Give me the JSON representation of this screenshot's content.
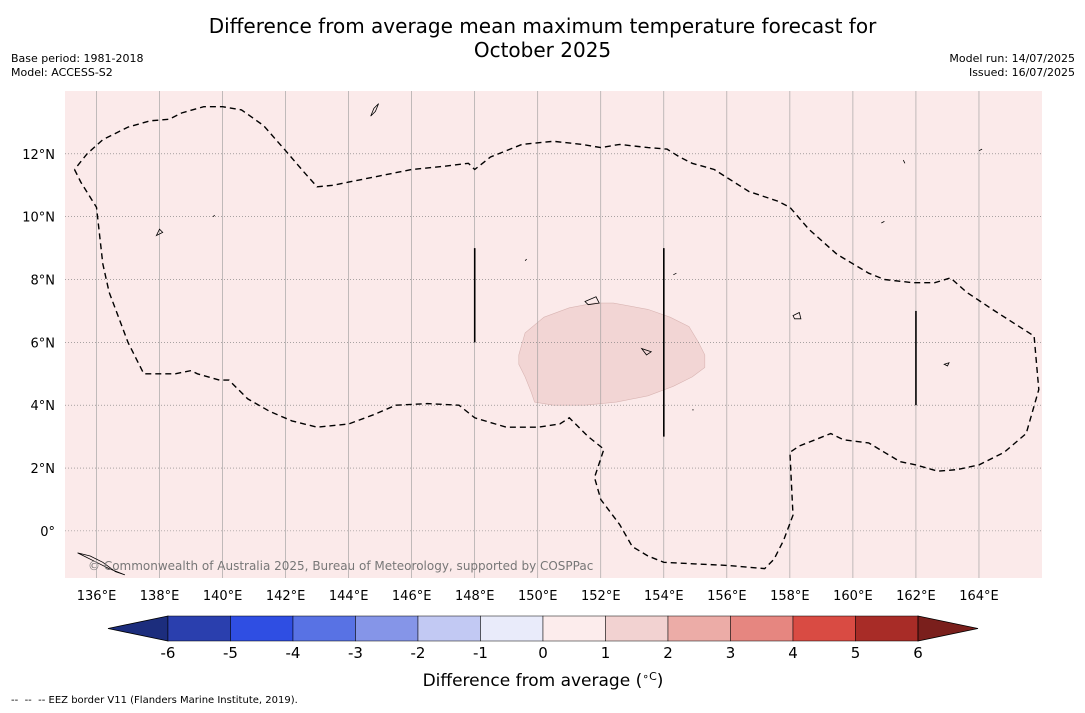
{
  "title_line1": "Difference from average mean maximum temperature forecast for",
  "title_line2": "October 2025",
  "base_period_label": "Base period:",
  "base_period": "1981-2018",
  "model_label": "Model:",
  "model": "ACCESS-S2",
  "model_run_label": "Model run:",
  "model_run": "14/07/2025",
  "issued_label": "Issued:",
  "issued": "16/07/2025",
  "copyright": "© Commonwealth of Australia 2025, Bureau of Meteorology, supported by COSPPac",
  "footnote": "--  --  -- EEZ border V11 (Flanders Marine Institute, 2019).",
  "colors": {
    "background_anomaly": "#fbeaea",
    "warm_patch": "#f2d5d4",
    "gridline": "#999999"
  },
  "map": {
    "lon_range": [
      135,
      166
    ],
    "lat_range": [
      -1.5,
      14
    ],
    "lon_ticks": [
      136,
      138,
      140,
      142,
      144,
      146,
      148,
      150,
      152,
      154,
      156,
      158,
      160,
      162,
      164
    ],
    "lon_tick_labels": [
      "136°E",
      "138°E",
      "140°E",
      "142°E",
      "144°E",
      "146°E",
      "148°E",
      "150°E",
      "152°E",
      "154°E",
      "156°E",
      "158°E",
      "160°E",
      "162°E",
      "164°E"
    ],
    "lat_ticks": [
      0,
      2,
      4,
      6,
      8,
      10,
      12
    ],
    "lat_tick_labels": [
      "0°",
      "2°N",
      "4°N",
      "6°N",
      "8°N",
      "10°N",
      "12°N"
    ],
    "eez_border": [
      [
        135.3,
        11.5
      ],
      [
        135.5,
        11.1
      ],
      [
        136,
        10.3
      ],
      [
        136.2,
        8.5
      ],
      [
        136.4,
        7.6
      ],
      [
        137,
        6
      ],
      [
        137.5,
        5
      ],
      [
        138.5,
        5
      ],
      [
        139,
        5.1
      ],
      [
        139.2,
        5
      ],
      [
        139.9,
        4.8
      ],
      [
        140.2,
        4.8
      ],
      [
        140.8,
        4.2
      ],
      [
        141.5,
        3.8
      ],
      [
        142.2,
        3.5
      ],
      [
        143,
        3.3
      ],
      [
        144,
        3.4
      ],
      [
        144.8,
        3.7
      ],
      [
        145.5,
        4
      ],
      [
        146.5,
        4.05
      ],
      [
        147.5,
        4
      ],
      [
        148,
        3.6
      ],
      [
        149,
        3.3
      ],
      [
        150,
        3.3
      ],
      [
        150.7,
        3.4
      ],
      [
        151,
        3.6
      ],
      [
        151.6,
        3
      ],
      [
        152.1,
        2.6
      ],
      [
        151.8,
        1.7
      ],
      [
        152,
        1
      ],
      [
        152.6,
        0.2
      ],
      [
        153,
        -0.5
      ],
      [
        153.5,
        -0.8
      ],
      [
        154,
        -1
      ],
      [
        155,
        -1.05
      ],
      [
        156,
        -1.1
      ],
      [
        157.2,
        -1.2
      ],
      [
        157.5,
        -0.9
      ],
      [
        157.8,
        -0.3
      ],
      [
        158.1,
        0.5
      ],
      [
        158,
        2.5
      ],
      [
        158.3,
        2.7
      ],
      [
        158.8,
        2.9
      ],
      [
        159.3,
        3.1
      ],
      [
        159.7,
        2.9
      ],
      [
        160.5,
        2.8
      ],
      [
        161,
        2.5
      ],
      [
        161.5,
        2.2
      ],
      [
        162,
        2.1
      ],
      [
        162.7,
        1.9
      ],
      [
        163.3,
        1.95
      ],
      [
        164,
        2.1
      ],
      [
        164.8,
        2.5
      ],
      [
        165.5,
        3.1
      ],
      [
        165.9,
        4.5
      ],
      [
        165.75,
        6.2
      ],
      [
        164.5,
        7
      ],
      [
        163.6,
        7.6
      ],
      [
        163.1,
        8.05
      ],
      [
        162.6,
        7.9
      ],
      [
        161.9,
        7.9
      ],
      [
        161,
        8
      ],
      [
        160.5,
        8.2
      ],
      [
        160,
        8.5
      ],
      [
        159.5,
        8.8
      ],
      [
        158.6,
        9.6
      ],
      [
        158,
        10.3
      ],
      [
        157.6,
        10.5
      ],
      [
        156.7,
        10.8
      ],
      [
        155.6,
        11.5
      ],
      [
        154.9,
        11.7
      ],
      [
        154.5,
        11.9
      ],
      [
        154.1,
        12.15
      ],
      [
        153.5,
        12.2
      ],
      [
        152.6,
        12.3
      ],
      [
        152,
        12.2
      ],
      [
        151.4,
        12.3
      ],
      [
        150.5,
        12.4
      ],
      [
        149.5,
        12.3
      ],
      [
        148.5,
        11.9
      ],
      [
        148,
        11.5
      ],
      [
        147.8,
        11.7
      ],
      [
        147,
        11.6
      ],
      [
        146,
        11.5
      ],
      [
        145,
        11.3
      ],
      [
        144,
        11.1
      ],
      [
        143.5,
        11
      ],
      [
        143,
        10.95
      ],
      [
        142.6,
        11.4
      ],
      [
        142,
        12.1
      ],
      [
        141.3,
        12.9
      ],
      [
        140.6,
        13.4
      ],
      [
        140,
        13.5
      ],
      [
        139.4,
        13.5
      ],
      [
        138.7,
        13.3
      ],
      [
        138.3,
        13.1
      ],
      [
        137.7,
        13.05
      ],
      [
        137,
        12.85
      ],
      [
        136.2,
        12.45
      ],
      [
        135.7,
        12
      ],
      [
        135.3,
        11.5
      ]
    ],
    "warm_region": [
      [
        149.4,
        5.6
      ],
      [
        149.6,
        6.3
      ],
      [
        150.2,
        6.8
      ],
      [
        151,
        7.1
      ],
      [
        151.8,
        7.25
      ],
      [
        152.4,
        7.25
      ],
      [
        153.5,
        7.05
      ],
      [
        154.2,
        6.8
      ],
      [
        154.8,
        6.5
      ],
      [
        155.1,
        6
      ],
      [
        155.3,
        5.6
      ],
      [
        155.3,
        5.2
      ],
      [
        154.9,
        4.9
      ],
      [
        154.3,
        4.6
      ],
      [
        153.5,
        4.3
      ],
      [
        152.5,
        4.1
      ],
      [
        151.5,
        4.0
      ],
      [
        150.5,
        4.0
      ],
      [
        149.9,
        4.1
      ],
      [
        149.8,
        4.4
      ],
      [
        149.6,
        4.9
      ],
      [
        149.4,
        5.3
      ],
      [
        149.4,
        5.6
      ]
    ],
    "boundary_lines": [
      {
        "lon": 148,
        "lat_from": 6.0,
        "lat_to": 9.0
      },
      {
        "lon": 154,
        "lat_from": 3.0,
        "lat_to": 9.0
      },
      {
        "lon": 162,
        "lat_from": 4.0,
        "lat_to": 7.0
      }
    ],
    "islands": [
      {
        "name": "guam",
        "points": [
          [
            144.7,
            13.2
          ],
          [
            144.8,
            13.45
          ],
          [
            144.95,
            13.6
          ],
          [
            144.85,
            13.35
          ],
          [
            144.7,
            13.2
          ]
        ]
      },
      {
        "name": "palau-islet",
        "points": [
          [
            137.9,
            9.4
          ],
          [
            138.0,
            9.6
          ],
          [
            138.1,
            9.5
          ],
          [
            137.9,
            9.4
          ]
        ]
      },
      {
        "name": "chuuk",
        "points": [
          [
            151.5,
            7.3
          ],
          [
            151.85,
            7.45
          ],
          [
            151.95,
            7.25
          ],
          [
            151.6,
            7.2
          ],
          [
            151.5,
            7.3
          ]
        ]
      },
      {
        "name": "pohnpei",
        "points": [
          [
            158.1,
            6.85
          ],
          [
            158.3,
            6.95
          ],
          [
            158.35,
            6.75
          ],
          [
            158.15,
            6.75
          ],
          [
            158.1,
            6.85
          ]
        ]
      },
      {
        "name": "kosrae",
        "points": [
          [
            162.9,
            5.3
          ],
          [
            163.05,
            5.35
          ],
          [
            163.0,
            5.25
          ],
          [
            162.9,
            5.3
          ]
        ]
      },
      {
        "name": "ulithi",
        "points": [
          [
            139.7,
            10.0
          ],
          [
            139.75,
            10.05
          ],
          [
            139.7,
            10.0
          ]
        ]
      },
      {
        "name": "nukuoro",
        "points": [
          [
            154.9,
            3.85
          ],
          [
            154.95,
            3.85
          ],
          [
            154.9,
            3.85
          ]
        ]
      },
      {
        "name": "kapinga",
        "points": [
          [
            153.3,
            5.8
          ],
          [
            153.45,
            5.6
          ],
          [
            153.6,
            5.7
          ],
          [
            153.3,
            5.8
          ]
        ]
      },
      {
        "name": "islet-a",
        "points": [
          [
            154.3,
            8.15
          ],
          [
            154.4,
            8.2
          ],
          [
            154.3,
            8.15
          ]
        ]
      },
      {
        "name": "islet-b",
        "points": [
          [
            164.0,
            12.1
          ],
          [
            164.1,
            12.15
          ],
          [
            164.0,
            12.1
          ]
        ]
      },
      {
        "name": "islet-c",
        "points": [
          [
            160.9,
            9.8
          ],
          [
            161.0,
            9.85
          ],
          [
            160.9,
            9.8
          ]
        ]
      },
      {
        "name": "islet-d",
        "points": [
          [
            161.6,
            11.8
          ],
          [
            161.65,
            11.7
          ],
          [
            161.6,
            11.8
          ]
        ]
      },
      {
        "name": "islet-e",
        "points": [
          [
            149.6,
            8.6
          ],
          [
            149.65,
            8.65
          ],
          [
            149.6,
            8.6
          ]
        ]
      },
      {
        "name": "new-guinea-coast",
        "points": [
          [
            135.4,
            -0.7
          ],
          [
            135.8,
            -0.8
          ],
          [
            136.2,
            -1.0
          ],
          [
            136.6,
            -1.3
          ],
          [
            136.9,
            -1.4
          ],
          [
            136.4,
            -1.2
          ],
          [
            136.0,
            -1.0
          ],
          [
            135.6,
            -0.8
          ],
          [
            135.4,
            -0.7
          ]
        ]
      }
    ]
  },
  "colorbar": {
    "title": "Difference from average (",
    "unit": "∘C",
    "title_close": ")",
    "colors": [
      "#1c2d7d",
      "#2a3fae",
      "#2f4ee3",
      "#5872e4",
      "#8595e8",
      "#c2c9f3",
      "#e9ebfa",
      "#fcecec",
      "#f2d2d1",
      "#ecaca7",
      "#e68680",
      "#d94b43",
      "#a82c27",
      "#7a1f1c"
    ],
    "tick_labels": [
      "-6",
      "-5",
      "-4",
      "-3",
      "-2",
      "-1",
      "0",
      "1",
      "2",
      "3",
      "4",
      "5",
      "6"
    ]
  }
}
